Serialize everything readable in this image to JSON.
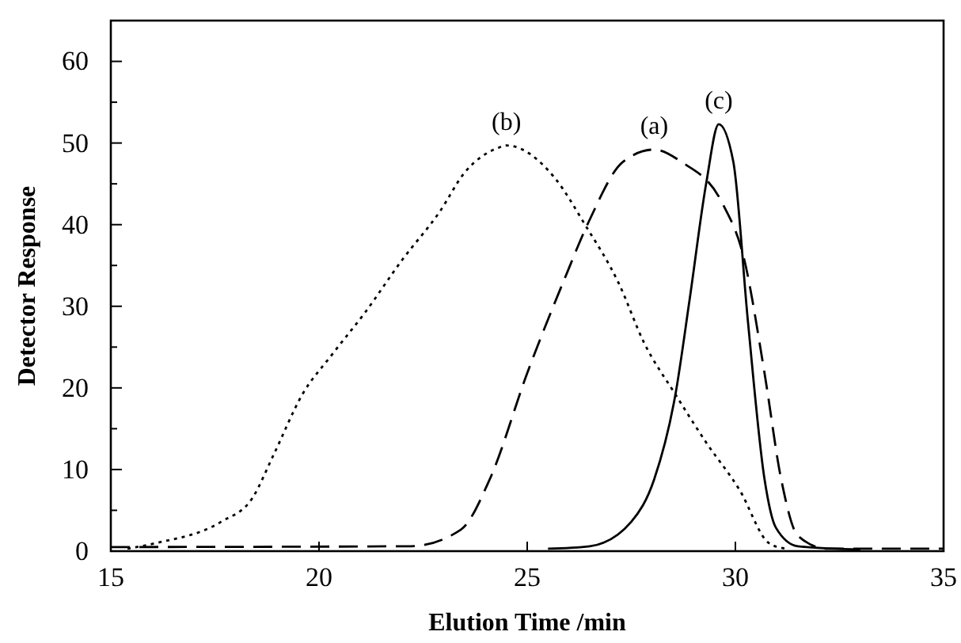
{
  "chart_data": {
    "type": "line",
    "xlabel": "Elution Time /min",
    "ylabel": "Detector Response",
    "xlim": [
      15,
      35
    ],
    "ylim": [
      0,
      65
    ],
    "xticks": [
      15,
      20,
      25,
      30,
      35
    ],
    "yticks": [
      0,
      {
        "value": 5,
        "label": null
      },
      10,
      {
        "value": 15,
        "label": null
      },
      20,
      {
        "value": 25,
        "label": null
      },
      30,
      {
        "value": 35,
        "label": null
      },
      40,
      {
        "value": 45,
        "label": null
      },
      50,
      {
        "value": 55,
        "label": null
      },
      60
    ],
    "grid": false,
    "marker": "none",
    "series": [
      {
        "color": "#000000",
        "line_style": "dotted",
        "x": [
          15.4,
          16.1,
          17.65,
          18.4,
          18.9,
          19.6,
          20.3,
          21.1,
          22.0,
          22.9,
          23.5,
          24.3,
          24.5,
          25.65,
          26.4,
          27.2,
          27.8,
          28.56,
          29.3,
          30.1,
          30.8,
          31.2
        ],
        "values": [
          0.3,
          1.0,
          3.6,
          6.5,
          11.7,
          19.2,
          24,
          29.2,
          35.7,
          41.6,
          46.4,
          49.4,
          49.7,
          45.8,
          39.9,
          32.8,
          25.6,
          19.2,
          13.3,
          7.5,
          1.0,
          0.3
        ]
      },
      {
        "color": "#000000",
        "line_style": "dashed",
        "x": [
          15,
          22.2,
          23.4,
          24.1,
          25.0,
          25.9,
          26.5,
          27.3,
          28.05,
          28.7,
          29.7,
          30.2,
          30.7,
          31.1,
          31.5,
          32.2,
          35
        ],
        "values": [
          0.5,
          0.6,
          2.6,
          8.8,
          21.8,
          33.4,
          40.6,
          47.7,
          49.2,
          47.7,
          42.5,
          36,
          21.8,
          8.8,
          1.9,
          0.3,
          0.3
        ]
      },
      {
        "color": "#000000",
        "line_style": "solid",
        "x": [
          25.5,
          26.5,
          27.5,
          28.05,
          28.56,
          28.9,
          29.3,
          29.6,
          29.95,
          30.3,
          30.7,
          30.97,
          31.5,
          33
        ],
        "values": [
          0.3,
          0.6,
          3.6,
          8.8,
          19.2,
          30.8,
          45.1,
          52.3,
          47.7,
          28.2,
          8.8,
          2.9,
          0.6,
          0.2
        ]
      }
    ],
    "annotations": [
      "(b)",
      "(a)",
      "(c)"
    ]
  }
}
